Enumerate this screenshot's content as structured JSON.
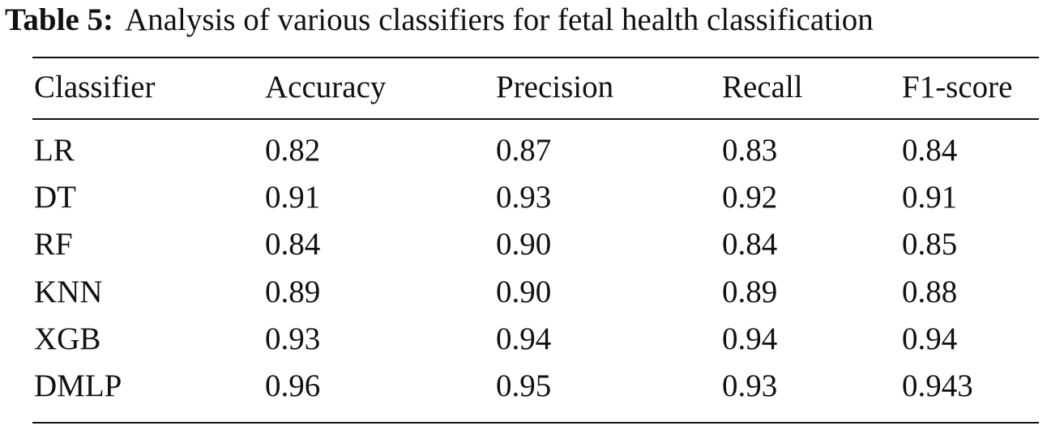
{
  "caption": {
    "label": "Table 5:",
    "text": "Analysis of various classifiers for fetal health classification"
  },
  "table": {
    "header": [
      "Classifier",
      "Accuracy",
      "Precision",
      "Recall",
      "F1-score"
    ],
    "rows": [
      [
        "LR",
        "0.82",
        "0.87",
        "0.83",
        "0.84"
      ],
      [
        "DT",
        "0.91",
        "0.93",
        "0.92",
        "0.91"
      ],
      [
        "RF",
        "0.84",
        "0.90",
        "0.84",
        "0.85"
      ],
      [
        "KNN",
        "0.89",
        "0.90",
        "0.89",
        "0.88"
      ],
      [
        "XGB",
        "0.93",
        "0.94",
        "0.94",
        "0.94"
      ],
      [
        "DMLP",
        "0.96",
        "0.95",
        "0.93",
        "0.943"
      ]
    ]
  }
}
